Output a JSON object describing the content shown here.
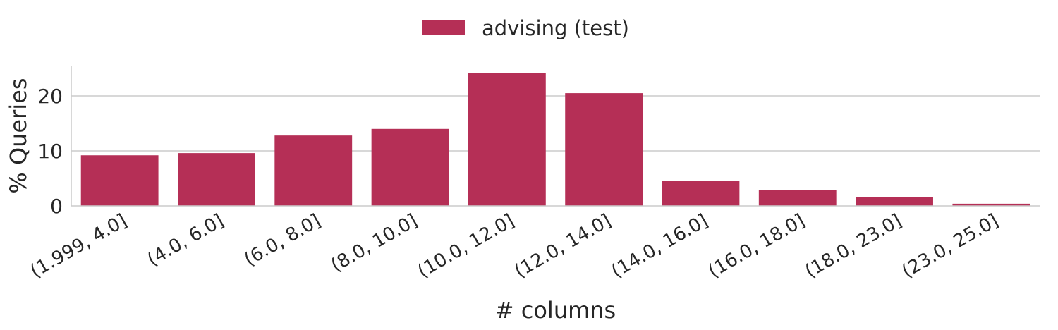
{
  "chart_data": {
    "type": "bar",
    "categories": [
      "(1.999, 4.0]",
      "(4.0, 6.0]",
      "(6.0, 8.0]",
      "(8.0, 10.0]",
      "(10.0, 12.0]",
      "(12.0, 14.0]",
      "(14.0, 16.0]",
      "(16.0, 18.0]",
      "(18.0, 23.0]",
      "(23.0, 25.0]"
    ],
    "series": [
      {
        "name": "advising (test)",
        "values": [
          9.2,
          9.6,
          12.8,
          14.0,
          24.2,
          20.5,
          4.5,
          2.9,
          1.6,
          0.4
        ],
        "color": "#b52f56"
      }
    ],
    "xlabel": "# columns",
    "ylabel": "% Queries",
    "ylim": [
      0,
      25.5
    ],
    "yticks": [
      0,
      10,
      20
    ],
    "grid": "horizontal",
    "legend_position": "top-center"
  }
}
